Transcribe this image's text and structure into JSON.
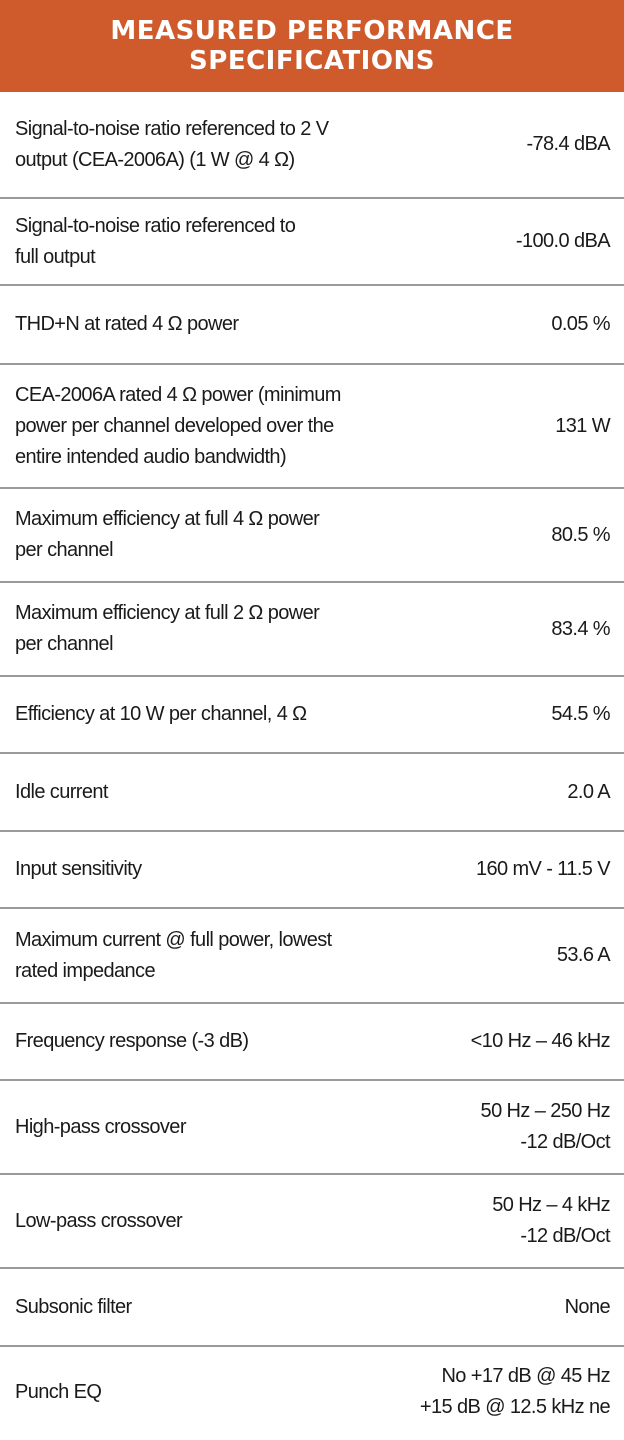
{
  "header": {
    "title_line1": "MEASURED PERFORMANCE",
    "title_line2": "SPECIFICATIONS"
  },
  "colors": {
    "header_bg": "#cf5a2c",
    "divider": "#9a9a9a"
  },
  "rows": [
    {
      "label": [
        "Signal-to-noise ratio referenced to 2 V",
        "output (CEA-2006A)  (1 W @ 4 Ω)"
      ],
      "value": [
        "-78.4 dBA"
      ]
    },
    {
      "label": [
        "Signal-to-noise ratio referenced to",
        "full output"
      ],
      "value": [
        "-100.0 dBA"
      ]
    },
    {
      "label": [
        "THD+N at rated 4 Ω power"
      ],
      "value": [
        "0.05 %"
      ]
    },
    {
      "label": [
        "CEA-2006A rated 4 Ω power (minimum",
        "power per channel developed over the",
        "entire intended audio bandwidth)"
      ],
      "value": [
        "131 W"
      ]
    },
    {
      "label": [
        "Maximum efficiency at full 4 Ω power",
        "per channel"
      ],
      "value": [
        "80.5 %"
      ]
    },
    {
      "label": [
        "Maximum efficiency at full 2 Ω power",
        "per channel"
      ],
      "value": [
        "83.4 %"
      ]
    },
    {
      "label": [
        "Efficiency at  10 W per channel, 4 Ω"
      ],
      "value": [
        "54.5 %"
      ]
    },
    {
      "label": [
        "Idle current"
      ],
      "value": [
        "2.0 A"
      ]
    },
    {
      "label": [
        "Input sensitivity"
      ],
      "value": [
        "160 mV - 11.5 V"
      ]
    },
    {
      "label": [
        "Maximum current @ full power, lowest",
        "rated impedance"
      ],
      "value": [
        "53.6 A"
      ]
    },
    {
      "label": [
        "Frequency response (-3 dB)"
      ],
      "value": [
        "<10 Hz – 46 kHz"
      ]
    },
    {
      "label": [
        "High-pass crossover"
      ],
      "value": [
        "50 Hz – 250 Hz",
        "-12 dB/Oct"
      ]
    },
    {
      "label": [
        "Low-pass crossover"
      ],
      "value": [
        "50 Hz – 4 kHz",
        "-12 dB/Oct"
      ]
    },
    {
      "label": [
        "Subsonic filter"
      ],
      "value": [
        "None"
      ]
    },
    {
      "label": [
        "Punch EQ"
      ],
      "value": [
        "No +17 dB @ 45  Hz",
        "+15 dB @ 12.5 kHz ne"
      ]
    }
  ]
}
